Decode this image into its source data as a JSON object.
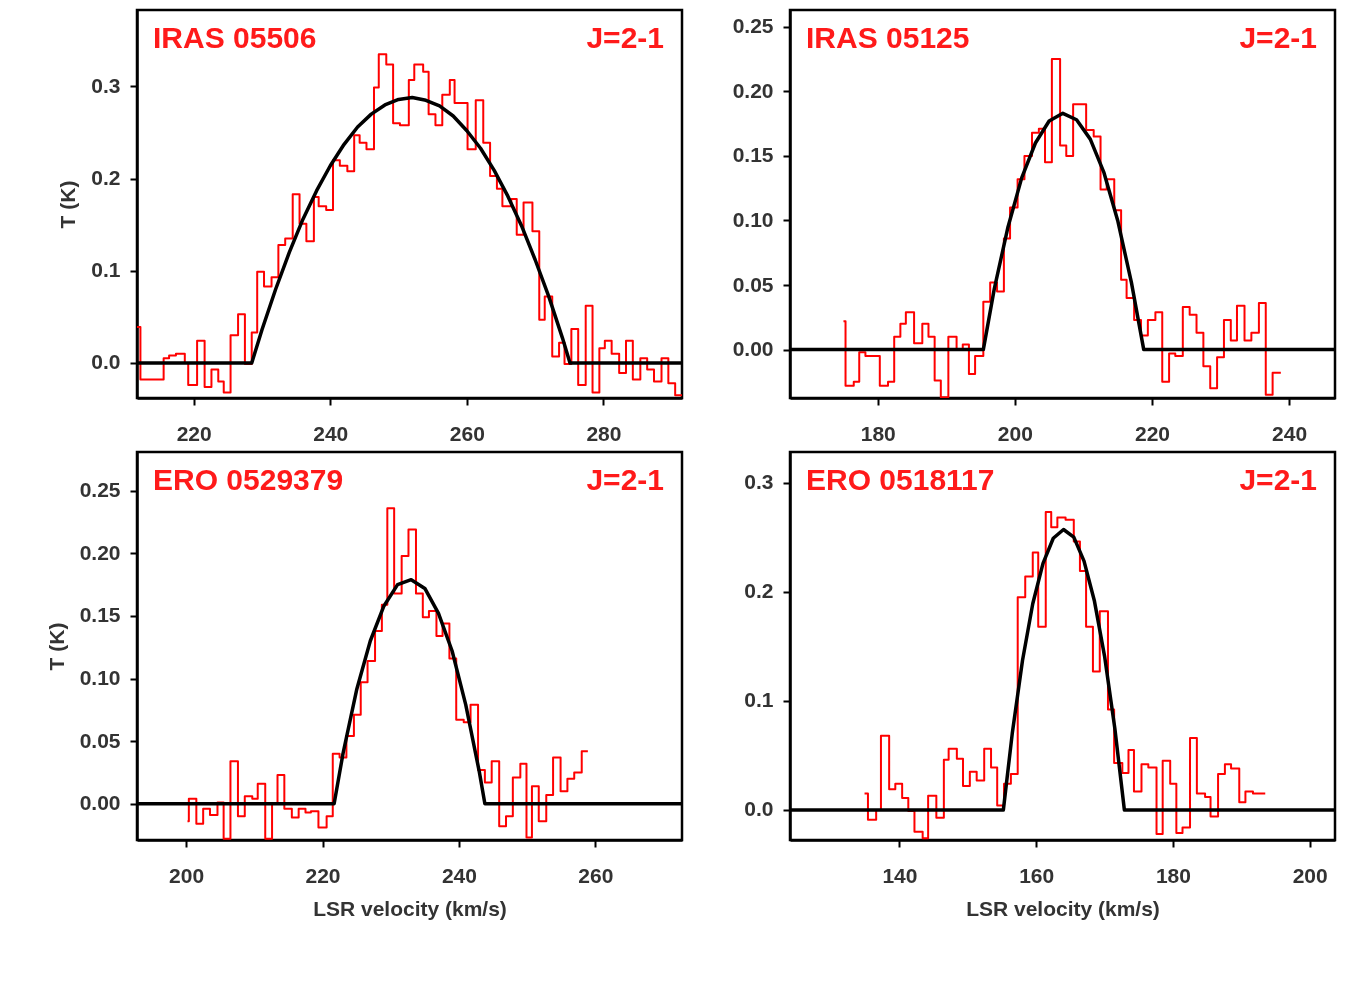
{
  "chart_data": [
    {
      "type": "step",
      "ylabel": "T (K)",
      "annotations": [
        "IRAS 05506",
        "J=2-1"
      ],
      "xlim": [
        211.7,
        291.5
      ],
      "ylim": [
        -0.038,
        0.383
      ],
      "xticks": [
        220,
        240,
        260,
        280
      ],
      "yticks": [
        {
          "value": 0,
          "label": "0.0"
        },
        0.1,
        0.2,
        0.3
      ],
      "grid": false,
      "series": [
        {
          "type": "step",
          "color": "#ff0000",
          "x": [
            211.7,
            212.2,
            215.6,
            216.4,
            217.4,
            218.7,
            219.2,
            220.5,
            221.6,
            222.6,
            223.6,
            224.4,
            225.4,
            226.5,
            227.5,
            228.5,
            229.3,
            230.3,
            231.4,
            232.4,
            233.4,
            234.5,
            235.5,
            236.5,
            237.6,
            238.3,
            239.4,
            240.4,
            241.4,
            242.5,
            243.5,
            244.3,
            245.3,
            246.4,
            247.1,
            248.2,
            249.2,
            250.2,
            251.5,
            252.3,
            253.6,
            254.4,
            255.4,
            256.4,
            257.5,
            258.2,
            260.1,
            261.3,
            262.4,
            263.4,
            264.4,
            265.2,
            266.5,
            267.3,
            268.3,
            269.6,
            270.6,
            271.4,
            272.5,
            273.5,
            274.3,
            275.3,
            276.3,
            277.4,
            278.4,
            279.4,
            280.2,
            281.2,
            282.3,
            283.3,
            284.3,
            285.4,
            286.4,
            287.4,
            288.5,
            289.5,
            290.5,
            291.5
          ],
          "values": [
            0.039,
            -0.018,
            0.005,
            0.008,
            0.01,
            0.0,
            -0.024,
            0.024,
            -0.026,
            -0.007,
            -0.02,
            -0.032,
            0.03,
            0.053,
            -0.001,
            0.033,
            0.099,
            0.083,
            0.093,
            0.128,
            0.135,
            0.183,
            0.151,
            0.132,
            0.18,
            0.17,
            0.166,
            0.22,
            0.214,
            0.208,
            0.247,
            0.239,
            0.232,
            0.299,
            0.335,
            0.324,
            0.26,
            0.258,
            0.307,
            0.324,
            0.316,
            0.27,
            0.258,
            0.291,
            0.307,
            0.282,
            0.232,
            0.285,
            0.239,
            0.203,
            0.189,
            0.17,
            0.178,
            0.139,
            0.174,
            0.143,
            0.047,
            0.072,
            0.007,
            0.022,
            -0.001,
            0.037,
            -0.024,
            0.062,
            -0.032,
            0.016,
            0.024,
            0.01,
            -0.011,
            0.024,
            -0.018,
            0.005,
            -0.007,
            -0.02,
            0.005,
            -0.022,
            -0.035,
            -0.035
          ]
        },
        {
          "type": "line",
          "color": "#000000",
          "x": [
            211.7,
            228.5,
            230,
            232,
            234,
            236,
            238,
            240,
            242,
            244,
            246,
            248,
            250,
            252,
            254,
            256,
            258,
            260,
            262,
            264,
            266,
            268,
            270,
            272,
            274,
            275.1,
            291.5
          ],
          "values": [
            0,
            0,
            0.036,
            0.08,
            0.12,
            0.156,
            0.187,
            0.214,
            0.237,
            0.256,
            0.27,
            0.28,
            0.286,
            0.288,
            0.285,
            0.279,
            0.268,
            0.252,
            0.233,
            0.209,
            0.181,
            0.149,
            0.112,
            0.072,
            0.027,
            0,
            0
          ]
        }
      ]
    },
    {
      "type": "step",
      "annotations": [
        "IRAS 05125",
        "J=2-1"
      ],
      "xlim": [
        167.2,
        246.7
      ],
      "ylim": [
        -0.0375,
        0.263
      ],
      "xticks": [
        180,
        200,
        220,
        240
      ],
      "yticks": [
        {
          "value": 0,
          "label": "0.00"
        },
        {
          "value": 0.05,
          "label": "0.05"
        },
        {
          "value": 0.1,
          "label": "0.10"
        },
        {
          "value": 0.15,
          "label": "0.15"
        },
        {
          "value": 0.2,
          "label": "0.20"
        },
        {
          "value": 0.25,
          "label": "0.25"
        }
      ],
      "grid": false,
      "series": [
        {
          "type": "step",
          "color": "#ff0000",
          "x": [
            175.0,
            175.3,
            176.5,
            177.3,
            178.2,
            180.3,
            181.5,
            182.4,
            183.3,
            184.1,
            185.3,
            186.5,
            187.4,
            188.3,
            189.2,
            190.3,
            191.5,
            192.4,
            193.3,
            194.2,
            195.4,
            196.4,
            197.4,
            198.4,
            199.3,
            200.4,
            201.4,
            202.5,
            203.5,
            204.4,
            205.4,
            206.6,
            207.5,
            208.5,
            209.4,
            210.4,
            211.5,
            212.5,
            213.4,
            214.5,
            215.5,
            216.3,
            217.4,
            218.4,
            219.4,
            220.5,
            221.5,
            222.5,
            223.4,
            224.5,
            225.5,
            226.5,
            227.5,
            228.5,
            229.5,
            230.5,
            231.5,
            232.4,
            233.5,
            234.5,
            235.6,
            236.6,
            237.6,
            238.8
          ],
          "values": [
            0.022,
            -0.028,
            -0.025,
            -0.002,
            -0.005,
            -0.028,
            -0.025,
            0.01,
            0.02,
            0.029,
            0.005,
            0.02,
            0.01,
            -0.024,
            -0.037,
            0.01,
            0.0,
            0.004,
            -0.019,
            -0.005,
            0.037,
            0.052,
            0.045,
            0.086,
            0.11,
            0.132,
            0.15,
            0.168,
            0.171,
            0.145,
            0.225,
            0.158,
            0.15,
            0.19,
            0.19,
            0.17,
            0.165,
            0.124,
            0.132,
            0.108,
            0.054,
            0.04,
            0.023,
            0.011,
            0.023,
            0.029,
            -0.025,
            -0.003,
            -0.005,
            0.033,
            0.027,
            0.013,
            -0.013,
            -0.03,
            -0.006,
            0.023,
            0.007,
            0.034,
            0.007,
            0.013,
            0.036,
            -0.035,
            -0.018,
            -0.018
          ]
        },
        {
          "type": "line",
          "color": "#000000",
          "x": [
            167.2,
            195.4,
            197,
            199,
            201,
            203,
            205,
            207,
            209,
            211,
            213,
            215,
            217,
            218.8,
            246.7
          ],
          "values": [
            0,
            0,
            0.047,
            0.095,
            0.133,
            0.16,
            0.177,
            0.183,
            0.178,
            0.163,
            0.137,
            0.1,
            0.052,
            0,
            0
          ]
        }
      ]
    },
    {
      "type": "step",
      "xlabel": "LSR velocity (km/s)",
      "ylabel": "T (K)",
      "annotations": [
        "ERO 0529379",
        "J=2-1"
      ],
      "xlim": [
        192.8,
        272.7
      ],
      "ylim": [
        -0.029,
        0.281
      ],
      "xticks": [
        200,
        220,
        240,
        260
      ],
      "yticks": [
        {
          "value": 0,
          "label": "0.00"
        },
        {
          "value": 0.05,
          "label": "0.05"
        },
        {
          "value": 0.1,
          "label": "0.10"
        },
        {
          "value": 0.15,
          "label": "0.15"
        },
        {
          "value": 0.2,
          "label": "0.20"
        },
        {
          "value": 0.25,
          "label": "0.25"
        }
      ],
      "grid": false,
      "series": [
        {
          "type": "step",
          "color": "#ff0000",
          "x": [
            200.2,
            200.4,
            201.5,
            202.5,
            203.5,
            204.6,
            205.5,
            206.5,
            207.6,
            208.6,
            209.7,
            210.5,
            211.6,
            212.6,
            213.4,
            214.4,
            215.5,
            216.5,
            217.5,
            218.3,
            219.4,
            220.6,
            221.5,
            222.5,
            223.5,
            224.6,
            225.6,
            226.6,
            227.7,
            228.7,
            229.5,
            230.5,
            231.6,
            232.6,
            233.7,
            234.7,
            235.6,
            236.7,
            237.6,
            238.6,
            239.6,
            240.7,
            241.7,
            242.8,
            243.8,
            244.8,
            245.9,
            246.9,
            247.9,
            249.0,
            249.9,
            250.7,
            251.7,
            252.8,
            253.8,
            254.9,
            255.9,
            256.9,
            258.0,
            258.9
          ],
          "values": [
            -0.014,
            0.004,
            -0.016,
            -0.004,
            -0.009,
            0.001,
            -0.028,
            0.034,
            -0.01,
            0.006,
            0.004,
            0.016,
            -0.028,
            0.0,
            0.023,
            -0.004,
            -0.011,
            -0.004,
            -0.007,
            -0.006,
            -0.019,
            -0.01,
            0.04,
            0.037,
            0.054,
            0.071,
            0.097,
            0.114,
            0.138,
            0.159,
            0.236,
            0.168,
            0.198,
            0.219,
            0.168,
            0.149,
            0.154,
            0.134,
            0.144,
            0.116,
            0.067,
            0.065,
            0.079,
            0.027,
            0.017,
            0.034,
            -0.018,
            -0.01,
            0.021,
            0.032,
            -0.027,
            0.014,
            -0.014,
            0.007,
            0.037,
            0.01,
            0.02,
            0.025,
            0.042,
            0.042
          ]
        },
        {
          "type": "line",
          "color": "#000000",
          "x": [
            192.8,
            221.7,
            223,
            225,
            227,
            229,
            231,
            233,
            235,
            237,
            239,
            241,
            243,
            243.8,
            272.7
          ],
          "values": [
            0,
            0,
            0.04,
            0.091,
            0.13,
            0.158,
            0.175,
            0.179,
            0.172,
            0.152,
            0.122,
            0.079,
            0.025,
            0,
            0
          ]
        }
      ]
    },
    {
      "type": "step",
      "xlabel": "LSR velocity (km/s)",
      "annotations": [
        "ERO 0518117",
        "J=2-1"
      ],
      "xlim": [
        124.0,
        203.7
      ],
      "ylim": [
        -0.0275,
        0.328
      ],
      "xticks": [
        140,
        160,
        180,
        200
      ],
      "yticks": [
        {
          "value": 0,
          "label": "0.0"
        },
        0.1,
        0.2,
        0.3
      ],
      "grid": false,
      "series": [
        {
          "type": "step",
          "color": "#ff0000",
          "x": [
            134.9,
            135.4,
            136.6,
            137.3,
            138.5,
            139.4,
            140.4,
            141.3,
            142.2,
            143.4,
            144.2,
            145.4,
            146.5,
            147.2,
            148.4,
            149.3,
            150.3,
            151.3,
            152.4,
            153.4,
            154.3,
            155.3,
            156.3,
            157.3,
            158.4,
            159.5,
            160.3,
            161.4,
            162.2,
            163.1,
            164.3,
            165.5,
            166.4,
            167.3,
            168.3,
            169.3,
            170.5,
            171.4,
            172.6,
            173.5,
            174.3,
            175.4,
            176.4,
            177.6,
            178.5,
            179.6,
            180.5,
            181.4,
            182.5,
            183.5,
            184.7,
            185.5,
            186.6,
            187.6,
            188.5,
            189.7,
            190.6,
            191.7,
            193.5
          ],
          "values": [
            0.015,
            -0.009,
            0.0,
            0.068,
            0.019,
            0.024,
            0.011,
            -0.001,
            -0.02,
            -0.026,
            0.013,
            -0.007,
            0.046,
            0.056,
            0.047,
            0.022,
            0.035,
            0.027,
            0.056,
            0.039,
            0.004,
            0.024,
            0.033,
            0.195,
            0.214,
            0.236,
            0.168,
            0.273,
            0.259,
            0.268,
            0.266,
            0.246,
            0.219,
            0.168,
            0.127,
            0.182,
            0.092,
            0.043,
            0.034,
            0.055,
            0.017,
            0.042,
            0.039,
            -0.022,
            0.045,
            0.024,
            -0.021,
            -0.016,
            0.066,
            0.015,
            0.012,
            -0.006,
            0.033,
            0.042,
            0.038,
            0.007,
            0.017,
            0.015,
            0.015
          ]
        },
        {
          "type": "line",
          "color": "#000000",
          "x": [
            124.0,
            155.2,
            156.5,
            158,
            159.5,
            161,
            162.5,
            164,
            165.5,
            167,
            168.5,
            170,
            171.5,
            172.9,
            203.7
          ],
          "values": [
            0,
            0,
            0.07,
            0.137,
            0.189,
            0.226,
            0.249,
            0.257,
            0.25,
            0.228,
            0.192,
            0.141,
            0.075,
            0,
            0
          ]
        }
      ]
    }
  ]
}
